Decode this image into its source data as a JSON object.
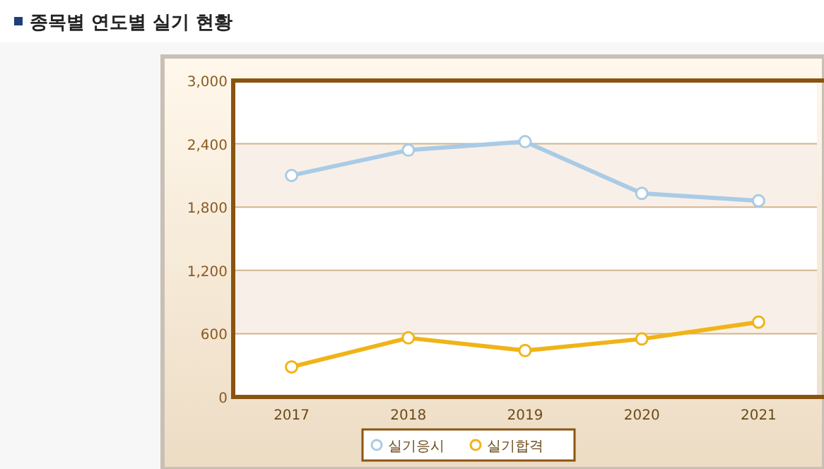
{
  "chart_data": {
    "type": "line",
    "title": "종목별 연도별 실기 현황",
    "categories": [
      "2017",
      "2018",
      "2019",
      "2020",
      "2021"
    ],
    "series": [
      {
        "name": "실기응시",
        "color": "#a9cbe6",
        "values": [
          2100,
          2340,
          2420,
          1930,
          1860
        ]
      },
      {
        "name": "실기합격",
        "color": "#f0b418",
        "values": [
          285,
          560,
          440,
          550,
          710
        ]
      }
    ],
    "ylim": [
      0,
      3000
    ],
    "yticks": [
      {
        "value": 0,
        "label": "0"
      },
      {
        "value": 600,
        "label": "600"
      },
      {
        "value": 1200,
        "label": "1,200"
      },
      {
        "value": 1800,
        "label": "1,800"
      },
      {
        "value": 2400,
        "label": "2,400"
      },
      {
        "value": 3000,
        "label": "3,000"
      }
    ],
    "grid": "y",
    "legend": "bottom",
    "marker": "circle"
  }
}
